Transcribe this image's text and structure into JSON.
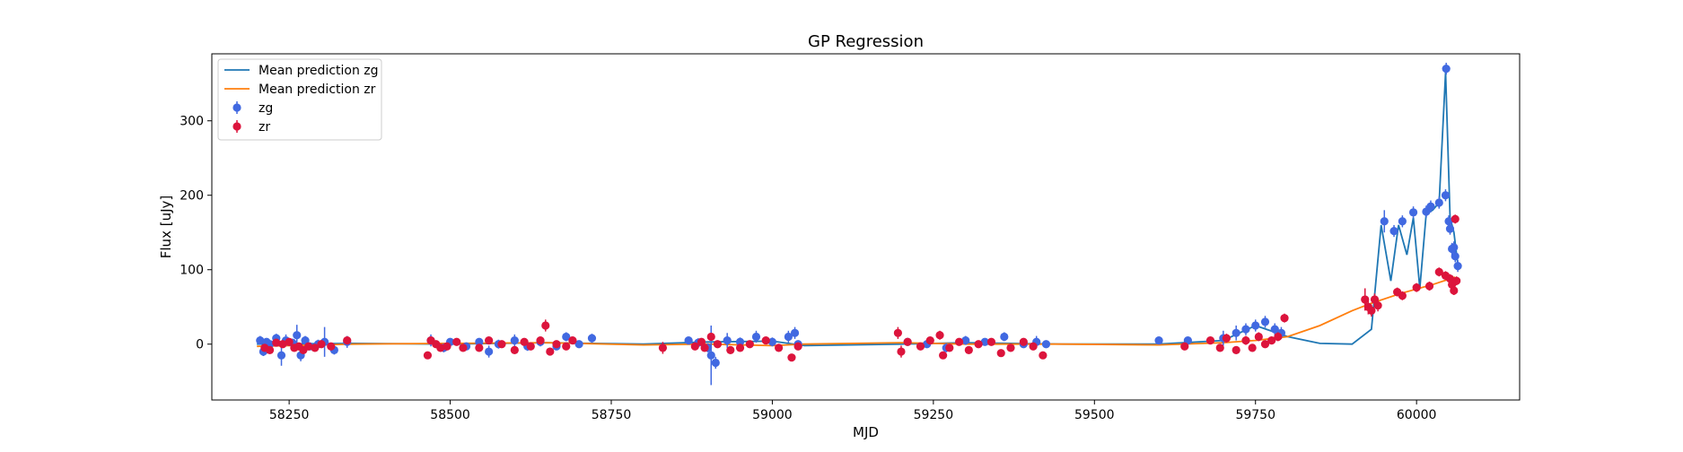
{
  "chart_data": {
    "type": "scatter",
    "title": "GP Regression",
    "xlabel": "MJD",
    "ylabel": "Flux [uJy]",
    "xlim": [
      58130,
      60160
    ],
    "ylim": [
      -75,
      390
    ],
    "xticks": [
      58250,
      58500,
      58750,
      59000,
      59250,
      59500,
      59750,
      60000
    ],
    "yticks": [
      0,
      100,
      200,
      300
    ],
    "grid": false,
    "legend_position": "upper-left",
    "legend": [
      "Mean prediction zg",
      "Mean prediction zr",
      "zg",
      "zr"
    ],
    "colors": {
      "mean_zg": "#1f77b4",
      "mean_zr": "#ff7f0e",
      "zg": "#4169e1",
      "zr": "#dc143c"
    },
    "series": [
      {
        "name": "Mean prediction zg",
        "kind": "line",
        "x": [
          58200,
          58350,
          58500,
          58650,
          58800,
          58900,
          59000,
          59050,
          59200,
          59300,
          59450,
          59600,
          59700,
          59750,
          59800,
          59850,
          59900,
          59930,
          59945,
          59960,
          59972,
          59985,
          59995,
          60005,
          60015,
          60025,
          60035,
          60045,
          60052,
          60058,
          60065
        ],
        "y": [
          0,
          1,
          0,
          2,
          0,
          3,
          4,
          -2,
          0,
          2,
          0,
          0,
          5,
          25,
          10,
          1,
          0,
          20,
          160,
          85,
          160,
          120,
          170,
          75,
          175,
          180,
          190,
          365,
          170,
          150,
          100
        ]
      },
      {
        "name": "Mean prediction zr",
        "kind": "line",
        "x": [
          58200,
          58350,
          58500,
          58650,
          58800,
          58900,
          59000,
          59050,
          59200,
          59300,
          59450,
          59600,
          59700,
          59750,
          59800,
          59850,
          59900,
          59930,
          59975,
          60025,
          60060
        ],
        "y": [
          -3,
          0,
          1,
          2,
          -1,
          0,
          -2,
          0,
          2,
          0,
          0,
          -1,
          2,
          5,
          10,
          25,
          45,
          55,
          68,
          80,
          90
        ]
      },
      {
        "name": "zg",
        "kind": "errorbar",
        "points": [
          [
            58205,
            5,
            6
          ],
          [
            58210,
            -10,
            6
          ],
          [
            58215,
            3,
            5
          ],
          [
            58220,
            0,
            4
          ],
          [
            58230,
            8,
            6
          ],
          [
            58238,
            -15,
            14
          ],
          [
            58245,
            5,
            8
          ],
          [
            58255,
            2,
            5
          ],
          [
            58262,
            12,
            14
          ],
          [
            58268,
            -15,
            8
          ],
          [
            58275,
            5,
            6
          ],
          [
            58282,
            -3,
            5
          ],
          [
            58295,
            0,
            6
          ],
          [
            58305,
            3,
            20
          ],
          [
            58320,
            -8,
            6
          ],
          [
            58340,
            3,
            8
          ],
          [
            58470,
            5,
            8
          ],
          [
            58490,
            -5,
            6
          ],
          [
            58500,
            3,
            5
          ],
          [
            58525,
            -3,
            5
          ],
          [
            58545,
            3,
            5
          ],
          [
            58560,
            -10,
            8
          ],
          [
            58575,
            0,
            6
          ],
          [
            58600,
            5,
            8
          ],
          [
            58620,
            -3,
            6
          ],
          [
            58640,
            3,
            6
          ],
          [
            58665,
            -3,
            5
          ],
          [
            58680,
            10,
            6
          ],
          [
            58700,
            0,
            5
          ],
          [
            58720,
            8,
            6
          ],
          [
            58870,
            5,
            5
          ],
          [
            58885,
            2,
            6
          ],
          [
            58900,
            -5,
            6
          ],
          [
            58905,
            -15,
            40
          ],
          [
            58912,
            -25,
            8
          ],
          [
            58930,
            5,
            10
          ],
          [
            58950,
            3,
            6
          ],
          [
            58975,
            10,
            8
          ],
          [
            59000,
            3,
            6
          ],
          [
            59025,
            10,
            8
          ],
          [
            59035,
            15,
            8
          ],
          [
            59040,
            0,
            5
          ],
          [
            59210,
            3,
            5
          ],
          [
            59240,
            0,
            5
          ],
          [
            59270,
            -5,
            6
          ],
          [
            59300,
            5,
            6
          ],
          [
            59330,
            3,
            5
          ],
          [
            59360,
            10,
            6
          ],
          [
            59390,
            0,
            5
          ],
          [
            59410,
            3,
            8
          ],
          [
            59425,
            0,
            5
          ],
          [
            59600,
            5,
            5
          ],
          [
            59645,
            5,
            5
          ],
          [
            59700,
            8,
            10
          ],
          [
            59720,
            15,
            10
          ],
          [
            59735,
            20,
            8
          ],
          [
            59750,
            25,
            8
          ],
          [
            59765,
            30,
            8
          ],
          [
            59780,
            20,
            8
          ],
          [
            59790,
            15,
            8
          ],
          [
            59950,
            165,
            15
          ],
          [
            59965,
            152,
            8
          ],
          [
            59978,
            165,
            8
          ],
          [
            59995,
            177,
            8
          ],
          [
            60015,
            178,
            8
          ],
          [
            60022,
            185,
            8
          ],
          [
            60035,
            190,
            8
          ],
          [
            60045,
            200,
            8
          ],
          [
            60046,
            370,
            8
          ],
          [
            60050,
            165,
            8
          ],
          [
            60052,
            155,
            8
          ],
          [
            60055,
            128,
            8
          ],
          [
            60058,
            130,
            8
          ],
          [
            60060,
            118,
            8
          ],
          [
            60064,
            105,
            8
          ]
        ]
      },
      {
        "name": "zr",
        "kind": "errorbar",
        "points": [
          [
            58212,
            -5,
            5
          ],
          [
            58220,
            -8,
            5
          ],
          [
            58230,
            2,
            5
          ],
          [
            58240,
            0,
            5
          ],
          [
            58250,
            3,
            5
          ],
          [
            58258,
            -5,
            5
          ],
          [
            58265,
            -3,
            5
          ],
          [
            58272,
            -8,
            5
          ],
          [
            58280,
            -3,
            5
          ],
          [
            58290,
            -5,
            5
          ],
          [
            58300,
            0,
            5
          ],
          [
            58315,
            -3,
            5
          ],
          [
            58340,
            5,
            5
          ],
          [
            58465,
            -15,
            5
          ],
          [
            58470,
            5,
            5
          ],
          [
            58478,
            0,
            5
          ],
          [
            58485,
            -5,
            5
          ],
          [
            58495,
            -3,
            5
          ],
          [
            58510,
            3,
            5
          ],
          [
            58520,
            -5,
            5
          ],
          [
            58545,
            -5,
            5
          ],
          [
            58560,
            5,
            5
          ],
          [
            58580,
            0,
            5
          ],
          [
            58600,
            -8,
            5
          ],
          [
            58615,
            3,
            5
          ],
          [
            58625,
            -3,
            5
          ],
          [
            58640,
            5,
            5
          ],
          [
            58648,
            25,
            8
          ],
          [
            58655,
            -10,
            5
          ],
          [
            58665,
            0,
            5
          ],
          [
            58680,
            -3,
            5
          ],
          [
            58690,
            5,
            5
          ],
          [
            58830,
            -5,
            8
          ],
          [
            58880,
            -3,
            5
          ],
          [
            58890,
            3,
            5
          ],
          [
            58895,
            -5,
            5
          ],
          [
            58905,
            10,
            5
          ],
          [
            58915,
            0,
            5
          ],
          [
            58935,
            -8,
            5
          ],
          [
            58950,
            -5,
            5
          ],
          [
            58965,
            0,
            5
          ],
          [
            58990,
            5,
            5
          ],
          [
            59010,
            -5,
            5
          ],
          [
            59030,
            -18,
            5
          ],
          [
            59040,
            -3,
            5
          ],
          [
            59195,
            15,
            8
          ],
          [
            59200,
            -10,
            8
          ],
          [
            59210,
            3,
            5
          ],
          [
            59230,
            -3,
            5
          ],
          [
            59245,
            5,
            5
          ],
          [
            59260,
            12,
            6
          ],
          [
            59265,
            -15,
            5
          ],
          [
            59275,
            -5,
            5
          ],
          [
            59290,
            3,
            5
          ],
          [
            59305,
            -8,
            5
          ],
          [
            59320,
            0,
            5
          ],
          [
            59340,
            3,
            5
          ],
          [
            59355,
            -12,
            5
          ],
          [
            59370,
            -5,
            5
          ],
          [
            59390,
            3,
            5
          ],
          [
            59405,
            -3,
            5
          ],
          [
            59420,
            -15,
            5
          ],
          [
            59640,
            -3,
            5
          ],
          [
            59680,
            5,
            5
          ],
          [
            59695,
            -5,
            5
          ],
          [
            59705,
            8,
            6
          ],
          [
            59720,
            -8,
            5
          ],
          [
            59735,
            5,
            6
          ],
          [
            59745,
            -5,
            5
          ],
          [
            59755,
            10,
            6
          ],
          [
            59765,
            0,
            5
          ],
          [
            59775,
            5,
            5
          ],
          [
            59785,
            10,
            6
          ],
          [
            59795,
            35,
            6
          ],
          [
            59920,
            60,
            15
          ],
          [
            59925,
            50,
            10
          ],
          [
            59930,
            45,
            8
          ],
          [
            59935,
            60,
            8
          ],
          [
            59940,
            52,
            8
          ],
          [
            59970,
            70,
            6
          ],
          [
            59978,
            65,
            6
          ],
          [
            60000,
            76,
            6
          ],
          [
            60020,
            78,
            6
          ],
          [
            60035,
            97,
            6
          ],
          [
            60045,
            92,
            6
          ],
          [
            60052,
            88,
            6
          ],
          [
            60055,
            80,
            6
          ],
          [
            60058,
            72,
            6
          ],
          [
            60060,
            168,
            6
          ],
          [
            60062,
            85,
            6
          ]
        ]
      }
    ]
  }
}
